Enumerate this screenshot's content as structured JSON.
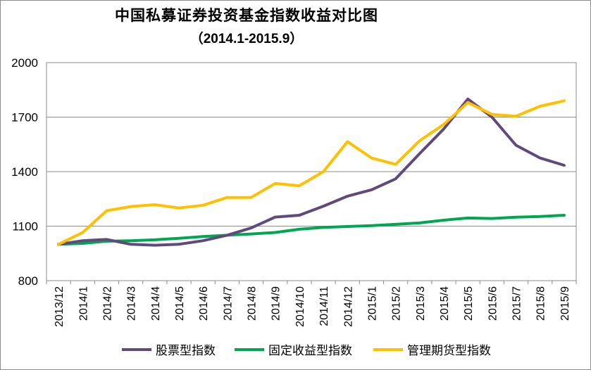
{
  "chart_data": {
    "type": "line",
    "title": "中国私募证券投资基金指数收益对比图",
    "subtitle": "（2014.1-2015.9）",
    "x": [
      "2013/12",
      "2014/1",
      "2014/2",
      "2014/3",
      "2014/4",
      "2014/5",
      "2014/6",
      "2014/7",
      "2014/8",
      "2014/9",
      "2014/10",
      "2014/11",
      "2014/12",
      "2015/1",
      "2015/2",
      "2015/3",
      "2015/4",
      "2015/5",
      "2015/6",
      "2015/7",
      "2015/8",
      "2015/9"
    ],
    "ylim": [
      800,
      2000
    ],
    "yticks": [
      800,
      1100,
      1400,
      1700,
      2000
    ],
    "grid": true,
    "legend_position": "bottom",
    "series": [
      {
        "name": "股票型指数",
        "color": "#604a7b",
        "values": [
          1000,
          1020,
          1027,
          1000,
          995,
          1000,
          1020,
          1050,
          1090,
          1150,
          1160,
          1210,
          1265,
          1300,
          1360,
          1500,
          1635,
          1800,
          1700,
          1545,
          1475,
          1435
        ]
      },
      {
        "name": "固定收益型指数",
        "color": "#00a651",
        "values": [
          1000,
          1005,
          1017,
          1020,
          1025,
          1033,
          1043,
          1050,
          1057,
          1065,
          1083,
          1093,
          1098,
          1103,
          1110,
          1118,
          1133,
          1145,
          1142,
          1149,
          1153,
          1160
        ]
      },
      {
        "name": "管理期货型指数",
        "color": "#ffc000",
        "values": [
          1000,
          1065,
          1185,
          1208,
          1218,
          1200,
          1215,
          1258,
          1258,
          1335,
          1322,
          1400,
          1565,
          1475,
          1440,
          1570,
          1660,
          1780,
          1715,
          1705,
          1760,
          1790
        ]
      }
    ]
  }
}
